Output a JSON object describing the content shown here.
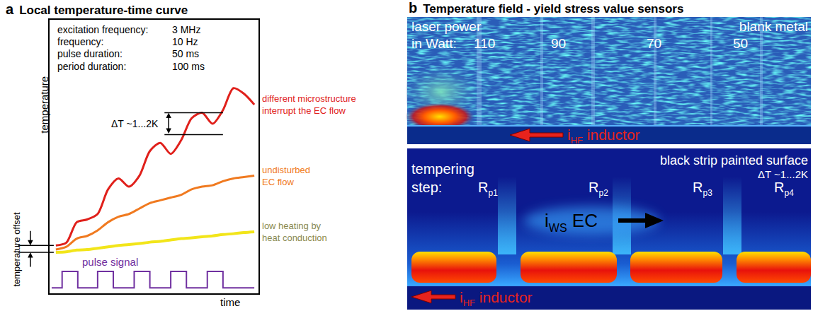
{
  "chart_data": {
    "type": "line",
    "panel": "a",
    "title": "Local temperature-time curve",
    "x_label": "time",
    "y_label": "temperature",
    "xlim": [
      0,
      10
    ],
    "ylim": [
      0,
      10
    ],
    "tick_labels": false,
    "grid": false,
    "info_box": [
      [
        "excitation frequency:",
        "3 MHz"
      ],
      [
        "frequency:",
        "10 Hz"
      ],
      [
        "pulse duration:",
        "50 ms"
      ],
      [
        "period duration:",
        "100 ms"
      ]
    ],
    "x": [
      0.3,
      0.8,
      1.3,
      1.8,
      2.3,
      2.8,
      3.3,
      3.8,
      4.3,
      4.8,
      5.3,
      5.8,
      6.3,
      6.8,
      7.3,
      7.8,
      8.3,
      8.8,
      9.3,
      9.8
    ],
    "series": [
      {
        "label": [
          "different microstructure",
          "interrupt the EC flow"
        ],
        "color": "#e0201b",
        "label_color": "#e0201b",
        "line_style": "solid",
        "values": [
          1.75,
          1.85,
          2.6,
          2.7,
          2.9,
          3.8,
          4.2,
          3.9,
          4.3,
          5.2,
          5.5,
          5.1,
          5.6,
          6.4,
          6.6,
          6.2,
          6.7,
          7.5,
          7.3,
          6.9
        ]
      },
      {
        "label": [
          "undisturbed",
          "EC flow"
        ],
        "color": "#f07a20",
        "label_color": "#f07a20",
        "line_style": "solid",
        "values": [
          1.6,
          1.7,
          2.0,
          2.1,
          2.3,
          2.6,
          2.8,
          2.9,
          3.1,
          3.3,
          3.4,
          3.5,
          3.6,
          3.8,
          3.9,
          3.95,
          4.1,
          4.2,
          4.25,
          4.3
        ]
      },
      {
        "label": [
          "low heating by",
          "heat conduction"
        ],
        "color": "#f2e51a",
        "label_color": "#8a8a50",
        "line_style": "solid",
        "values": [
          1.5,
          1.52,
          1.58,
          1.6,
          1.65,
          1.7,
          1.75,
          1.78,
          1.82,
          1.87,
          1.9,
          1.95,
          2.0,
          2.03,
          2.07,
          2.1,
          2.15,
          2.18,
          2.22,
          2.25
        ]
      }
    ],
    "pulse": {
      "label": "pulse signal",
      "color": "#7030a0",
      "x": [
        0.1,
        0.6,
        1.35,
        2.3,
        3.05,
        4.05,
        4.8,
        5.8,
        6.55,
        7.55,
        8.3,
        9.8
      ],
      "values": [
        0.2,
        0.8,
        0.2,
        0.8,
        0.2,
        0.8,
        0.2,
        0.8,
        0.2,
        0.8,
        0.2,
        0.2
      ]
    },
    "offset": {
      "label": "temperature offset",
      "levels": [
        1.5,
        1.75
      ]
    },
    "delta_t": {
      "label": "ΔT ~1...2K",
      "levels": [
        5.8,
        6.6
      ]
    }
  },
  "panel_b": {
    "panel": "b",
    "title": "Temperature field - yield stress value sensors",
    "top_image": {
      "labels": [
        "laser power",
        "in Watt:"
      ],
      "laser_power": [
        110,
        90,
        70,
        50
      ],
      "corner_label": "blank metal",
      "inductor": {
        "text": "i",
        "sub": "HF",
        "after": " inductor"
      }
    },
    "bottom_image": {
      "step_label": [
        "tempering",
        "step:"
      ],
      "steps": [
        {
          "text": "R",
          "sub": "p1"
        },
        {
          "text": "R",
          "sub": "p2"
        },
        {
          "text": "R",
          "sub": "p3"
        },
        {
          "text": "R",
          "sub": "p4"
        }
      ],
      "corner_label": "black strip painted surface",
      "delta_t": "ΔT ~1...2K",
      "current": {
        "text": "i",
        "sub": "WS",
        "after": " EC"
      },
      "inductor": {
        "text": "i",
        "sub": "HF",
        "after": " inductor"
      }
    }
  }
}
